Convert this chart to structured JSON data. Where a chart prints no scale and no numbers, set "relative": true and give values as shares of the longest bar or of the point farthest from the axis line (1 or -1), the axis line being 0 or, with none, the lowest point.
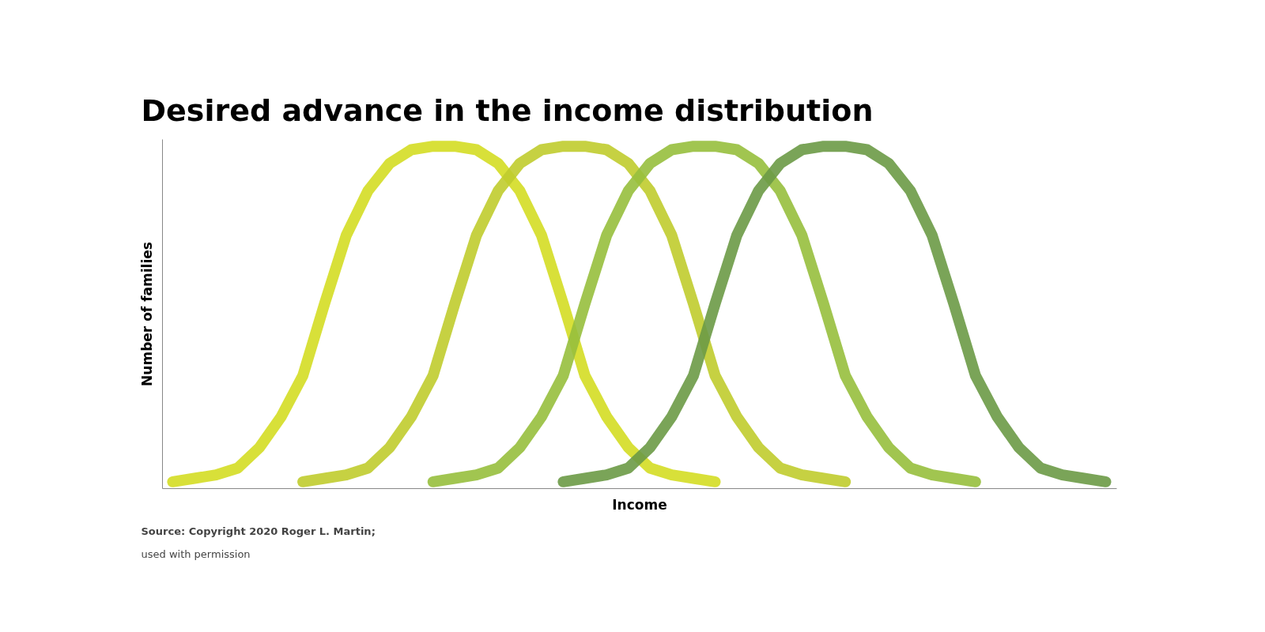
{
  "chart_data": {
    "type": "line",
    "title": "Desired advance in the income distribution",
    "xlabel": "Income",
    "ylabel": "Number of families",
    "relative": true,
    "categories": [
      null,
      null,
      null,
      null,
      null,
      null,
      null,
      null,
      null,
      null,
      null,
      null,
      null,
      null,
      null,
      null,
      null,
      null,
      null,
      null,
      null,
      null,
      null,
      null,
      null,
      null,
      null,
      null,
      null,
      null,
      null,
      null,
      null,
      null,
      null,
      null,
      null,
      null,
      null,
      null,
      null,
      null,
      null,
      null
    ],
    "series": [
      {
        "color": "#d4dd24",
        "values": [
          0.02,
          0.03,
          0.04,
          0.06,
          0.12,
          0.21,
          0.33,
          0.54,
          0.74,
          0.87,
          0.95,
          0.99,
          1.0,
          1.0,
          0.99,
          0.95,
          0.87,
          0.74,
          0.54,
          0.33,
          0.21,
          0.12,
          0.06,
          0.04,
          0.03,
          0.02,
          null,
          null,
          null,
          null,
          null,
          null,
          null,
          null,
          null,
          null,
          null,
          null,
          null,
          null,
          null,
          null,
          null,
          null
        ]
      },
      {
        "color": "#c0cc2e",
        "values": [
          null,
          null,
          null,
          null,
          null,
          null,
          0.02,
          0.03,
          0.04,
          0.06,
          0.12,
          0.21,
          0.33,
          0.54,
          0.74,
          0.87,
          0.95,
          0.99,
          1.0,
          1.0,
          0.99,
          0.95,
          0.87,
          0.74,
          0.54,
          0.33,
          0.21,
          0.12,
          0.06,
          0.04,
          0.03,
          0.02,
          null,
          null,
          null,
          null,
          null,
          null,
          null,
          null,
          null,
          null,
          null,
          null
        ]
      },
      {
        "color": "#97bf3d",
        "values": [
          null,
          null,
          null,
          null,
          null,
          null,
          null,
          null,
          null,
          null,
          null,
          null,
          0.02,
          0.03,
          0.04,
          0.06,
          0.12,
          0.21,
          0.33,
          0.54,
          0.74,
          0.87,
          0.95,
          0.99,
          1.0,
          1.0,
          0.99,
          0.95,
          0.87,
          0.74,
          0.54,
          0.33,
          0.21,
          0.12,
          0.06,
          0.04,
          0.03,
          0.02,
          null,
          null,
          null,
          null,
          null,
          null
        ]
      },
      {
        "color": "#6b9a46",
        "values": [
          null,
          null,
          null,
          null,
          null,
          null,
          null,
          null,
          null,
          null,
          null,
          null,
          null,
          null,
          null,
          null,
          null,
          null,
          0.02,
          0.03,
          0.04,
          0.06,
          0.12,
          0.21,
          0.33,
          0.54,
          0.74,
          0.87,
          0.95,
          0.99,
          1.0,
          1.0,
          0.99,
          0.95,
          0.87,
          0.74,
          0.54,
          0.33,
          0.21,
          0.12,
          0.06,
          0.04,
          0.03,
          0.02
        ]
      }
    ],
    "annotations": [
      "Source: Copyright 2020 Roger L. Martin;",
      "used with permission"
    ]
  }
}
